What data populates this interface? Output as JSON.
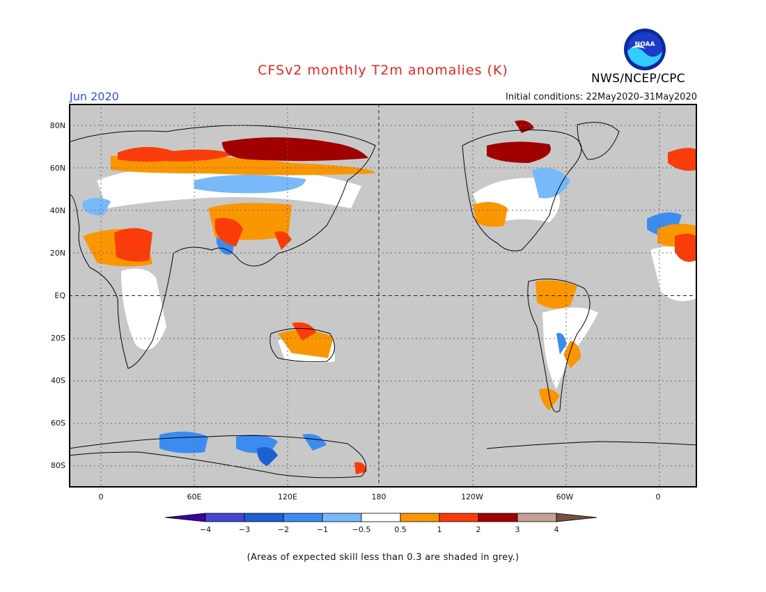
{
  "title": "CFSv2 monthly T2m anomalies (K)",
  "agency": "NWS/NCEP/CPC",
  "logo_text": "NOAA",
  "period": "Jun 2020",
  "initial_conditions": "Initial conditions: 22May2020–31May2020",
  "lat_labels": [
    "80N",
    "60N",
    "40N",
    "20N",
    "EQ",
    "20S",
    "40S",
    "60S",
    "80S"
  ],
  "lon_labels": [
    "0",
    "60E",
    "120E",
    "180",
    "120W",
    "60W",
    "0"
  ],
  "colorbar": {
    "labels": [
      "−4",
      "−3",
      "−2",
      "−1",
      "−0.5",
      "0.5",
      "1",
      "2",
      "3",
      "4"
    ],
    "colors": [
      "#3a05a0",
      "#4646d2",
      "#1e5fd2",
      "#3c8cf0",
      "#78b9fa",
      "#ffffff",
      "#fa9600",
      "#fa3c0a",
      "#a00000",
      "#c8a096",
      "#785040"
    ]
  },
  "colors": {
    "low_skill_grey": "#c8c8c8",
    "title_red": "#e8231e",
    "period_blue": "#2a55d8"
  },
  "footnote": "(Areas of expected skill less than 0.3 are shaded in grey.)"
}
